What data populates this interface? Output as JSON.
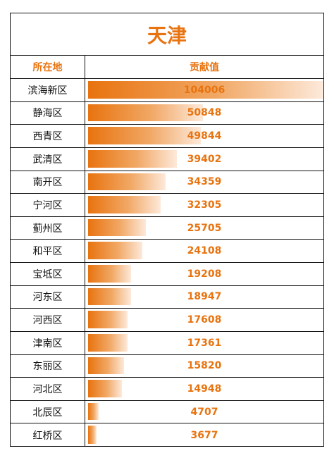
{
  "chart_data": {
    "type": "bar",
    "title": "天津",
    "column_headers": [
      "所在地",
      "贡献值"
    ],
    "categories": [
      "滨海新区",
      "静海区",
      "西青区",
      "武清区",
      "南开区",
      "宁河区",
      "蓟州区",
      "和平区",
      "宝坻区",
      "河东区",
      "河西区",
      "津南区",
      "东丽区",
      "河北区",
      "北辰区",
      "红桥区"
    ],
    "values": [
      104006,
      50848,
      49844,
      39402,
      34359,
      32305,
      25705,
      24108,
      19208,
      18947,
      17608,
      17361,
      15820,
      14948,
      4707,
      3677
    ],
    "bar_color": "#e8730f"
  }
}
